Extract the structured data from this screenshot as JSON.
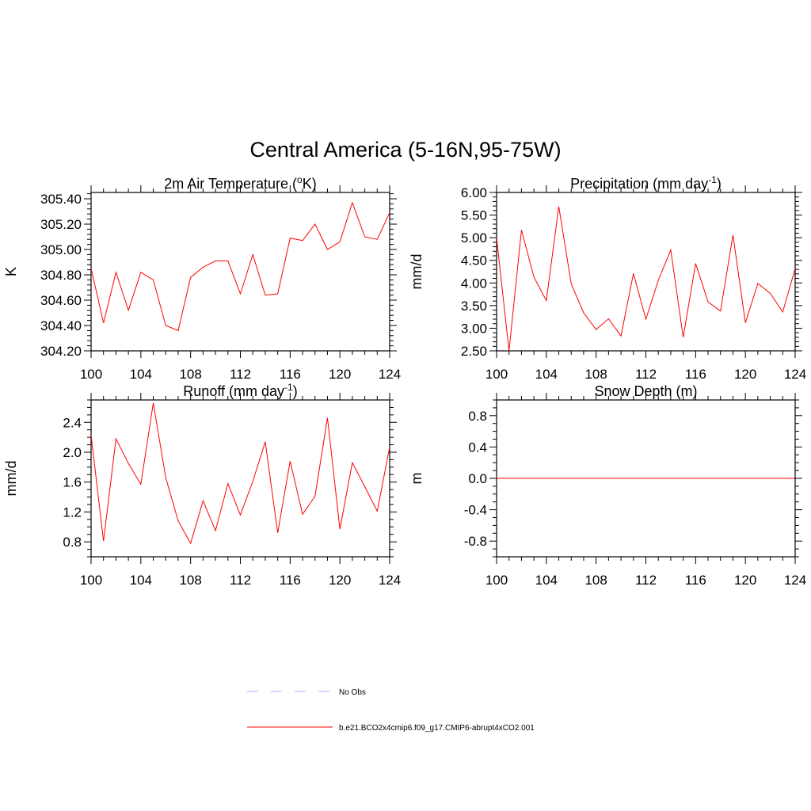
{
  "figure": {
    "title": "Central America (5-16N,95-75W)"
  },
  "chart_data": [
    {
      "type": "line",
      "title": "2m Air Temperature (",
      "title_sup": "o",
      "title_after": "K)",
      "ylabel": "K",
      "xlabel": "",
      "xlim": [
        100,
        124
      ],
      "ylim": [
        304.2,
        305.45
      ],
      "xticks": [
        100,
        104,
        108,
        112,
        116,
        120,
        124
      ],
      "xtick_labels": [
        "100",
        "104",
        "108",
        "112",
        "116",
        "120",
        "124"
      ],
      "yticks": [
        304.2,
        304.4,
        304.6,
        304.8,
        305.0,
        305.2,
        305.4
      ],
      "ytick_labels": [
        "304.20",
        "304.40",
        "304.60",
        "304.80",
        "305.00",
        "305.20",
        "305.40"
      ],
      "yminor_step": 0.04,
      "series": [
        {
          "name": "b.e21.BCO2x4cmip6.f09_g17.CMIP6-abrupt4xCO2.001",
          "color": "#ff0000",
          "x": [
            100,
            101,
            102,
            103,
            104,
            105,
            106,
            107,
            108,
            109,
            110,
            111,
            112,
            113,
            114,
            115,
            116,
            117,
            118,
            119,
            120,
            121,
            122,
            123,
            124
          ],
          "values": [
            304.85,
            304.42,
            304.82,
            304.52,
            304.82,
            304.76,
            304.4,
            304.36,
            304.78,
            304.86,
            304.91,
            304.91,
            304.65,
            304.96,
            304.64,
            304.65,
            305.09,
            305.07,
            305.2,
            305.0,
            305.06,
            305.37,
            305.1,
            305.08,
            305.29
          ]
        }
      ]
    },
    {
      "type": "line",
      "title": "Precipitation (mm day",
      "title_sup": "-1",
      "title_after": ")",
      "ylabel": "mm/d",
      "xlabel": "",
      "xlim": [
        100,
        124
      ],
      "ylim": [
        2.5,
        6.0
      ],
      "xticks": [
        100,
        104,
        108,
        112,
        116,
        120,
        124
      ],
      "xtick_labels": [
        "100",
        "104",
        "108",
        "112",
        "116",
        "120",
        "124"
      ],
      "yticks": [
        2.5,
        3.0,
        3.5,
        4.0,
        4.5,
        5.0,
        5.5,
        6.0
      ],
      "ytick_labels": [
        "2.50",
        "3.00",
        "3.50",
        "4.00",
        "4.50",
        "5.00",
        "5.50",
        "6.00"
      ],
      "yminor_step": 0.1,
      "series": [
        {
          "name": "b.e21.BCO2x4cmip6.f09_g17.CMIP6-abrupt4xCO2.001",
          "color": "#ff0000",
          "x": [
            100,
            101,
            102,
            103,
            104,
            105,
            106,
            107,
            108,
            109,
            110,
            111,
            112,
            113,
            114,
            115,
            116,
            117,
            118,
            119,
            120,
            121,
            122,
            123,
            124
          ],
          "values": [
            5.0,
            2.5,
            5.17,
            4.13,
            3.61,
            5.69,
            3.98,
            3.34,
            2.97,
            3.21,
            2.83,
            4.21,
            3.2,
            4.06,
            4.73,
            2.8,
            4.43,
            3.58,
            3.38,
            5.06,
            3.12,
            3.99,
            3.77,
            3.36,
            4.32
          ]
        }
      ]
    },
    {
      "type": "line",
      "title": "Runoff (mm day",
      "title_sup": "-1",
      "title_after": ")",
      "ylabel": "mm/d",
      "xlabel": "",
      "xlim": [
        100,
        124
      ],
      "ylim": [
        0.6,
        2.7
      ],
      "xticks": [
        100,
        104,
        108,
        112,
        116,
        120,
        124
      ],
      "xtick_labels": [
        "100",
        "104",
        "108",
        "112",
        "116",
        "120",
        "124"
      ],
      "yticks": [
        0.8,
        1.2,
        1.6,
        2.0,
        2.4
      ],
      "ytick_labels": [
        "0.8",
        "1.2",
        "1.6",
        "2.0",
        "2.4"
      ],
      "yminor_step": 0.1,
      "series": [
        {
          "name": "b.e21.BCO2x4cmip6.f09_g17.CMIP6-abrupt4xCO2.001",
          "color": "#ff0000",
          "x": [
            100,
            101,
            102,
            103,
            104,
            105,
            106,
            107,
            108,
            109,
            110,
            111,
            112,
            113,
            114,
            115,
            116,
            117,
            118,
            119,
            120,
            121,
            122,
            123,
            124
          ],
          "values": [
            2.23,
            0.81,
            2.18,
            1.85,
            1.57,
            2.66,
            1.66,
            1.08,
            0.78,
            1.35,
            0.95,
            1.58,
            1.16,
            1.61,
            2.14,
            0.92,
            1.88,
            1.17,
            1.41,
            2.46,
            0.97,
            1.86,
            1.54,
            1.21,
            2.07
          ]
        }
      ]
    },
    {
      "type": "line",
      "title": "Snow Depth (m)",
      "title_sup": "",
      "title_after": "",
      "ylabel": "m",
      "xlabel": "",
      "xlim": [
        100,
        124
      ],
      "ylim": [
        -1.0,
        1.0
      ],
      "xticks": [
        100,
        104,
        108,
        112,
        116,
        120,
        124
      ],
      "xtick_labels": [
        "100",
        "104",
        "108",
        "112",
        "116",
        "120",
        "124"
      ],
      "yticks": [
        -0.8,
        -0.4,
        0.0,
        0.4,
        0.8
      ],
      "ytick_labels": [
        "-0.8",
        "-0.4",
        "0.0",
        "0.4",
        "0.8"
      ],
      "yminor_step": 0.1,
      "series": [
        {
          "name": "b.e21.BCO2x4cmip6.f09_g17.CMIP6-abrupt4xCO2.001",
          "color": "#ff0000",
          "x": [
            100,
            101,
            102,
            103,
            104,
            105,
            106,
            107,
            108,
            109,
            110,
            111,
            112,
            113,
            114,
            115,
            116,
            117,
            118,
            119,
            120,
            121,
            122,
            123,
            124
          ],
          "values": [
            0,
            0,
            0,
            0,
            0,
            0,
            0,
            0,
            0,
            0,
            0,
            0,
            0,
            0,
            0,
            0,
            0,
            0,
            0,
            0,
            0,
            0,
            0,
            0,
            0
          ]
        }
      ]
    }
  ],
  "legend": {
    "entries": [
      {
        "label": "No Obs",
        "color": "#a8a8ff",
        "style": "dashed"
      },
      {
        "label": "b.e21.BCO2x4cmip6.f09_g17.CMIP6-abrupt4xCO2.001",
        "color": "#ff0000",
        "style": "solid"
      }
    ]
  }
}
